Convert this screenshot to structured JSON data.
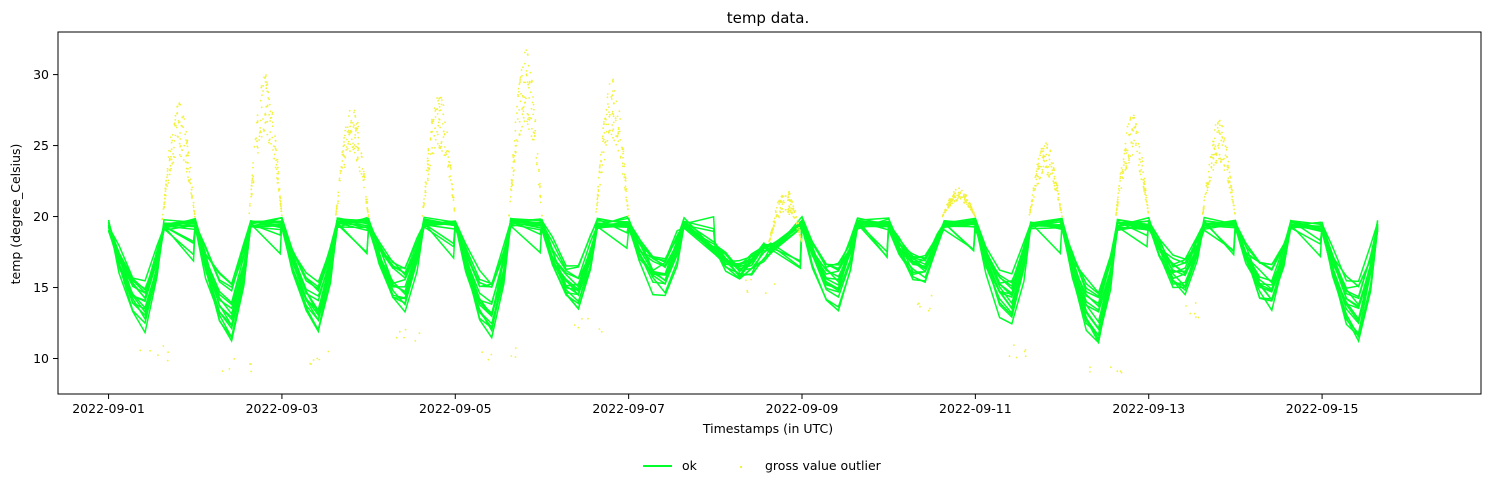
{
  "chart_data": {
    "type": "line",
    "title": "temp data.",
    "xlabel": "Timestamps (in UTC)",
    "ylabel": "temp (degree_Celsius)",
    "x_range": [
      "2022-08-31T10:00",
      "2022-09-16T20:00"
    ],
    "ylim": [
      7.5,
      33.0
    ],
    "x_ticks": [
      "2022-09-01",
      "2022-09-03",
      "2022-09-05",
      "2022-09-07",
      "2022-09-09",
      "2022-09-11",
      "2022-09-13",
      "2022-09-15"
    ],
    "y_ticks": [
      10,
      15,
      20,
      25,
      30
    ],
    "grid": false,
    "legend_position": "bottom-center",
    "colors": {
      "ok": "#00ff2a",
      "outlier": "#f2f23d"
    },
    "series": [
      {
        "name": "ok",
        "kind": "line",
        "description_of_shape": "many overlapping station traces with daily cycle",
        "daily_envelope": [
          {
            "day": "2022-09-01",
            "min": 11.0,
            "max": 19.8
          },
          {
            "day": "2022-09-02",
            "min": 10.2,
            "max": 20.0
          },
          {
            "day": "2022-09-03",
            "min": 10.5,
            "max": 20.0
          },
          {
            "day": "2022-09-04",
            "min": 12.2,
            "max": 20.0
          },
          {
            "day": "2022-09-05",
            "min": 10.8,
            "max": 20.0
          },
          {
            "day": "2022-09-06",
            "min": 13.0,
            "max": 20.0
          },
          {
            "day": "2022-09-07",
            "min": 13.6,
            "max": 20.0
          },
          {
            "day": "2022-09-08",
            "min": 15.6,
            "max": 18.2
          },
          {
            "day": "2022-09-09",
            "min": 12.8,
            "max": 20.0
          },
          {
            "day": "2022-09-10",
            "min": 14.5,
            "max": 20.0
          },
          {
            "day": "2022-09-11",
            "min": 11.0,
            "max": 20.0
          },
          {
            "day": "2022-09-12",
            "min": 10.0,
            "max": 20.0
          },
          {
            "day": "2022-09-13",
            "min": 14.0,
            "max": 20.0
          },
          {
            "day": "2022-09-14",
            "min": 12.8,
            "max": 20.0
          },
          {
            "day": "2022-09-15",
            "min": 10.2,
            "max": 19.8
          }
        ]
      },
      {
        "name": "gross value outlier",
        "kind": "scatter",
        "daily_peaks": [
          {
            "day": "2022-09-01",
            "peak": 28.0
          },
          {
            "day": "2022-09-02",
            "peak": 30.0
          },
          {
            "day": "2022-09-03",
            "peak": 27.8
          },
          {
            "day": "2022-09-04",
            "peak": 28.7
          },
          {
            "day": "2022-09-05",
            "peak": 31.8
          },
          {
            "day": "2022-09-06",
            "peak": 29.7
          },
          {
            "day": "2022-09-08",
            "peak": 22.0
          },
          {
            "day": "2022-09-10",
            "peak": 22.0
          },
          {
            "day": "2022-09-11",
            "peak": 25.3
          },
          {
            "day": "2022-09-12",
            "peak": 27.2
          },
          {
            "day": "2022-09-13",
            "peak": 26.8
          }
        ]
      }
    ]
  }
}
